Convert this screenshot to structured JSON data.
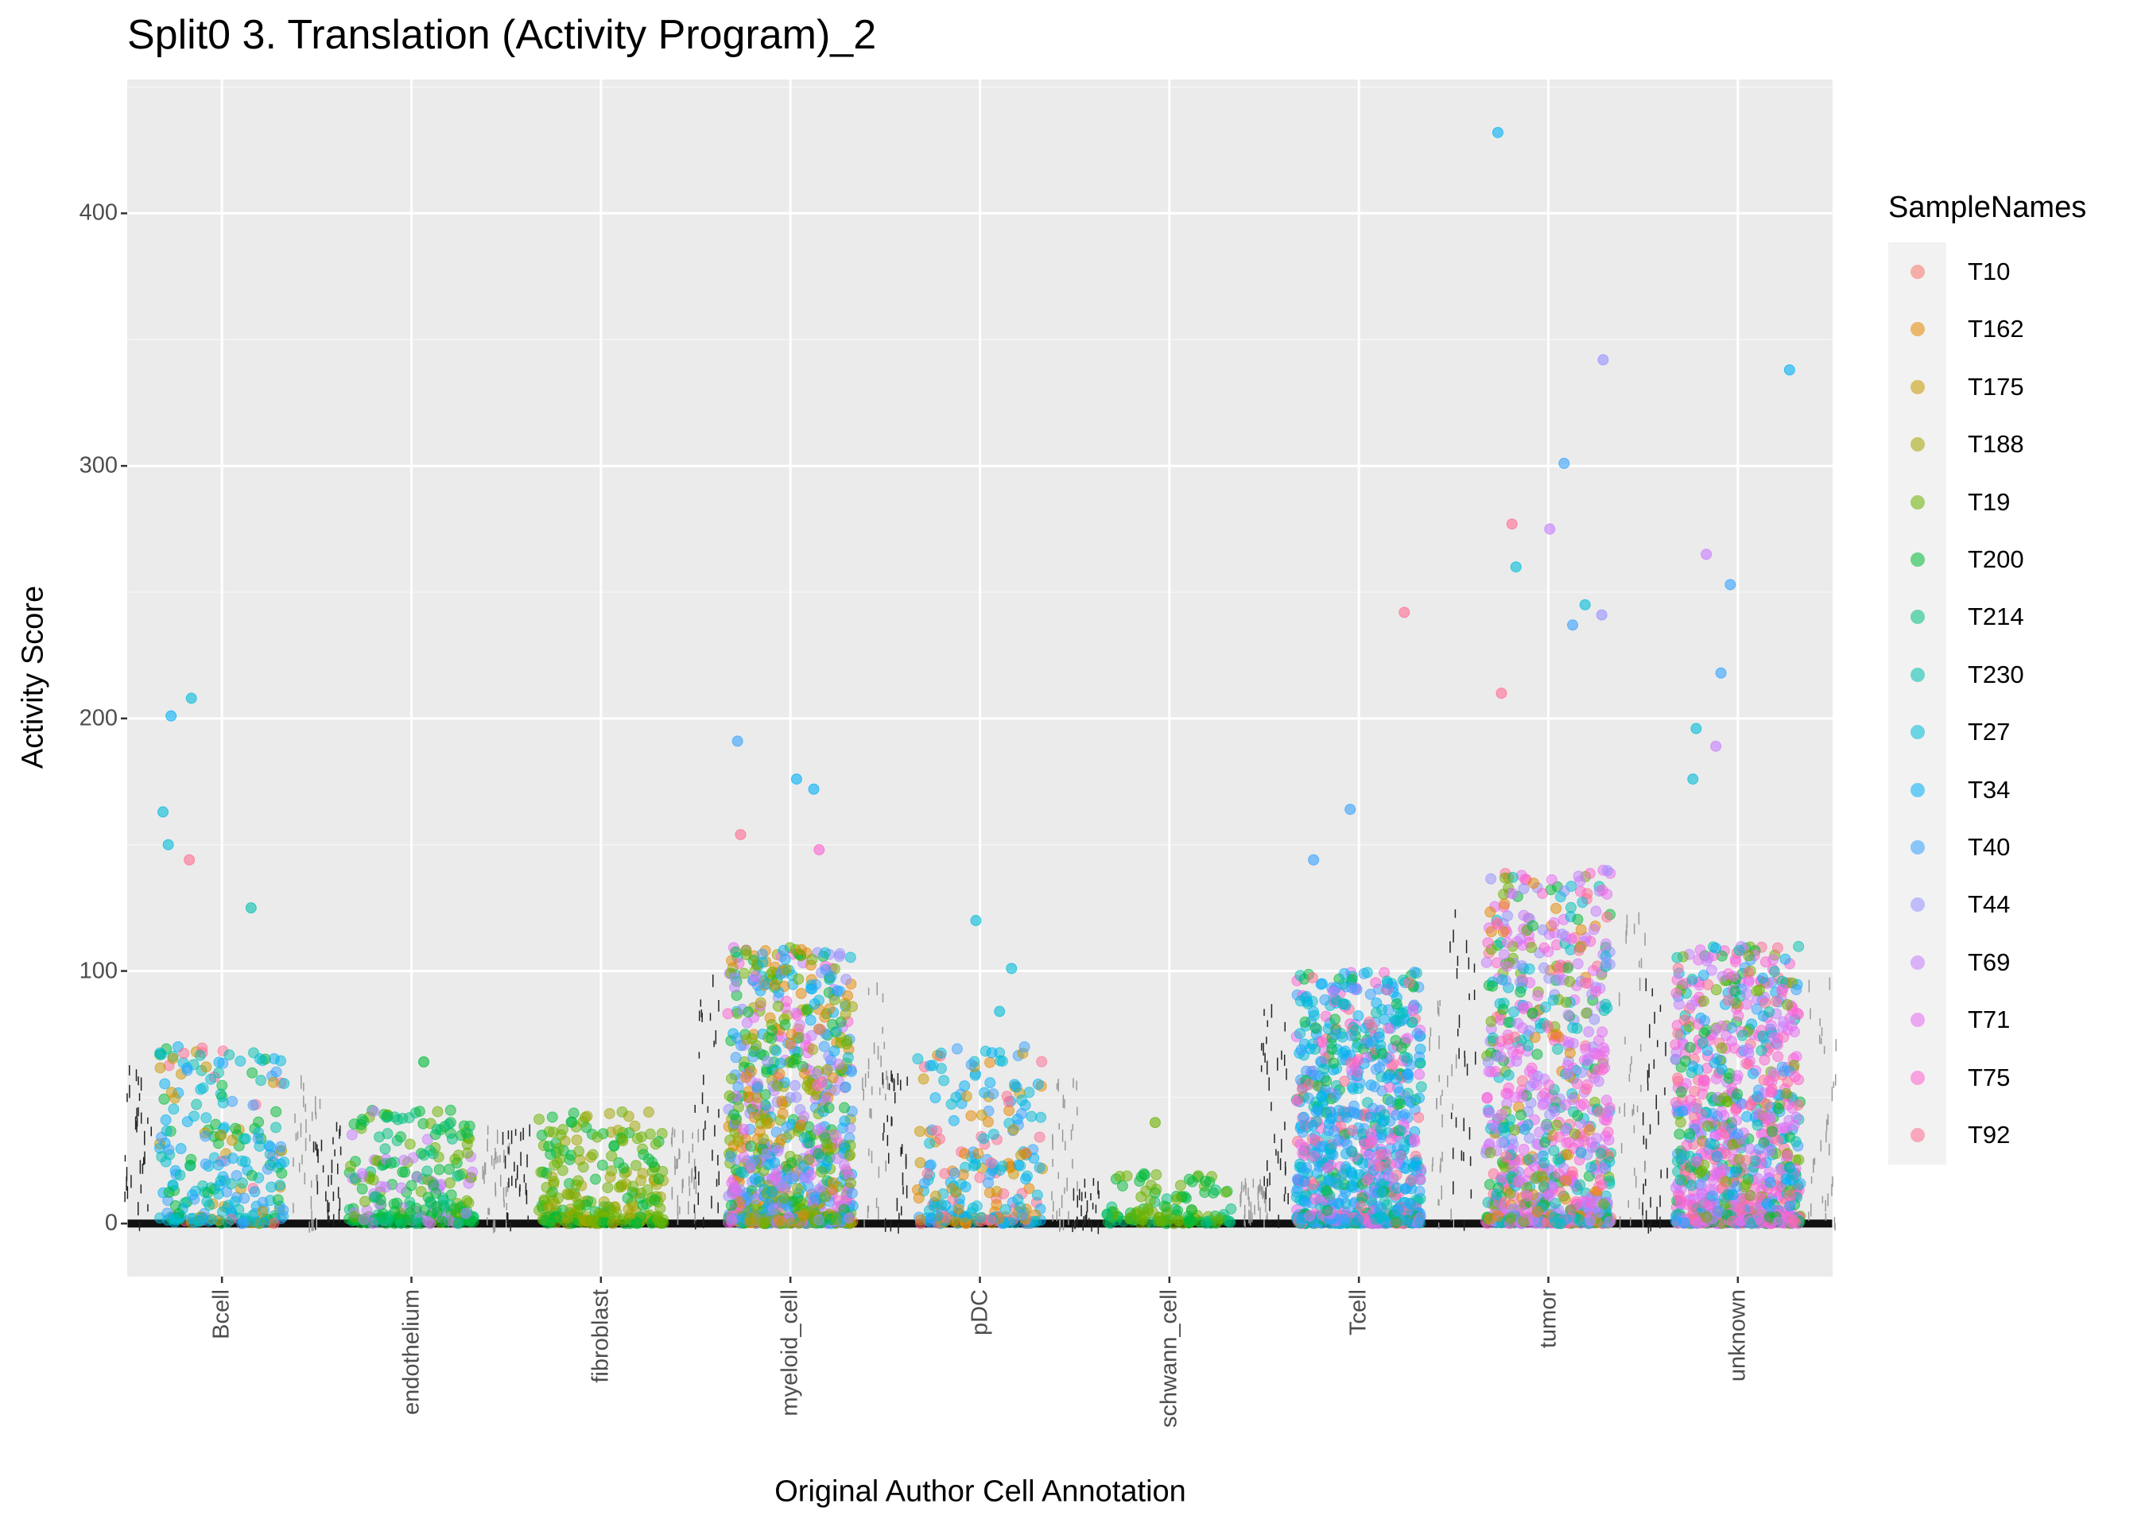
{
  "chart_data": {
    "type": "scatter",
    "title": "Split0 3. Translation (Activity Program)_2",
    "xlabel": "Original Author Cell Annotation",
    "ylabel": "Activity Score",
    "categories": [
      "Bcell",
      "endothelium",
      "fibroblast",
      "myeloid_cell",
      "pDC",
      "schwann_cell",
      "Tcell",
      "tumor",
      "unknown"
    ],
    "yticks": [
      0,
      100,
      200,
      300,
      400
    ],
    "ylim": [
      -21,
      453
    ],
    "grid": true,
    "legend": {
      "title": "SampleNames",
      "position": "right"
    },
    "series": [
      {
        "name": "T10",
        "color": "#F8766D"
      },
      {
        "name": "T162",
        "color": "#E58700"
      },
      {
        "name": "T175",
        "color": "#C99800"
      },
      {
        "name": "T188",
        "color": "#A3A500"
      },
      {
        "name": "T19",
        "color": "#6BB100"
      },
      {
        "name": "T200",
        "color": "#00BA38"
      },
      {
        "name": "T214",
        "color": "#00BF7D"
      },
      {
        "name": "T230",
        "color": "#00C0AF"
      },
      {
        "name": "T27",
        "color": "#00BCD8"
      },
      {
        "name": "T34",
        "color": "#00B0F6"
      },
      {
        "name": "T40",
        "color": "#35A2FF"
      },
      {
        "name": "T44",
        "color": "#9590FF"
      },
      {
        "name": "T69",
        "color": "#C77CFF"
      },
      {
        "name": "T71",
        "color": "#E76BF3"
      },
      {
        "name": "T75",
        "color": "#FD61D1"
      },
      {
        "name": "T92",
        "color": "#FF6C91"
      }
    ],
    "bulk": [
      {
        "category": "Bcell",
        "range": [
          0,
          70
        ],
        "samples": [
          "T27",
          "T34",
          "T40",
          "T230",
          "T92",
          "T200",
          "T175"
        ]
      },
      {
        "category": "endothelium",
        "range": [
          0,
          45
        ],
        "samples": [
          "T200",
          "T19",
          "T214",
          "T69"
        ]
      },
      {
        "category": "fibroblast",
        "range": [
          0,
          45
        ],
        "samples": [
          "T19",
          "T188",
          "T200"
        ]
      },
      {
        "category": "myeloid_cell",
        "range": [
          0,
          110
        ],
        "samples": [
          "T19",
          "T200",
          "T162",
          "T188",
          "T34",
          "T40",
          "T69",
          "T75",
          "T71",
          "T44",
          "T27"
        ]
      },
      {
        "category": "pDC",
        "range": [
          0,
          70
        ],
        "samples": [
          "T27",
          "T34",
          "T40",
          "T92",
          "T175",
          "T162"
        ]
      },
      {
        "category": "schwann_cell",
        "range": [
          0,
          20
        ],
        "samples": [
          "T19",
          "T200",
          "T214"
        ]
      },
      {
        "category": "Tcell",
        "range": [
          0,
          100
        ],
        "samples": [
          "T40",
          "T34",
          "T27",
          "T230",
          "T75",
          "T92",
          "T200",
          "T71"
        ]
      },
      {
        "category": "tumor",
        "range": [
          0,
          140
        ],
        "samples": [
          "T71",
          "T69",
          "T75",
          "T44",
          "T27",
          "T230",
          "T92",
          "T19",
          "T200",
          "T162"
        ]
      },
      {
        "category": "unknown",
        "range": [
          0,
          110
        ],
        "samples": [
          "T75",
          "T71",
          "T69",
          "T92",
          "T34",
          "T40",
          "T230",
          "T200",
          "T19"
        ]
      }
    ],
    "points": [
      {
        "category": "Bcell",
        "sample": "T34",
        "y": 201
      },
      {
        "category": "Bcell",
        "sample": "T27",
        "y": 208
      },
      {
        "category": "Bcell",
        "sample": "T27",
        "y": 163
      },
      {
        "category": "Bcell",
        "sample": "T27",
        "y": 150
      },
      {
        "category": "Bcell",
        "sample": "T92",
        "y": 144
      },
      {
        "category": "Bcell",
        "sample": "T230",
        "y": 125
      },
      {
        "category": "endothelium",
        "sample": "T200",
        "y": 64
      },
      {
        "category": "myeloid_cell",
        "sample": "T34",
        "y": 176
      },
      {
        "category": "myeloid_cell",
        "sample": "T40",
        "y": 191
      },
      {
        "category": "myeloid_cell",
        "sample": "T34",
        "y": 172
      },
      {
        "category": "myeloid_cell",
        "sample": "T92",
        "y": 154
      },
      {
        "category": "myeloid_cell",
        "sample": "T75",
        "y": 148
      },
      {
        "category": "pDC",
        "sample": "T27",
        "y": 120
      },
      {
        "category": "pDC",
        "sample": "T27",
        "y": 101
      },
      {
        "category": "pDC",
        "sample": "T27",
        "y": 84
      },
      {
        "category": "schwann_cell",
        "sample": "T19",
        "y": 40
      },
      {
        "category": "Tcell",
        "sample": "T92",
        "y": 242
      },
      {
        "category": "Tcell",
        "sample": "T40",
        "y": 164
      },
      {
        "category": "Tcell",
        "sample": "T40",
        "y": 144
      },
      {
        "category": "tumor",
        "sample": "T34",
        "y": 432
      },
      {
        "category": "tumor",
        "sample": "T44",
        "y": 342
      },
      {
        "category": "tumor",
        "sample": "T40",
        "y": 301
      },
      {
        "category": "tumor",
        "sample": "T92",
        "y": 277
      },
      {
        "category": "tumor",
        "sample": "T69",
        "y": 275
      },
      {
        "category": "tumor",
        "sample": "T27",
        "y": 260
      },
      {
        "category": "tumor",
        "sample": "T27",
        "y": 245
      },
      {
        "category": "tumor",
        "sample": "T40",
        "y": 237
      },
      {
        "category": "tumor",
        "sample": "T44",
        "y": 241
      },
      {
        "category": "tumor",
        "sample": "T92",
        "y": 210
      },
      {
        "category": "unknown",
        "sample": "T34",
        "y": 338
      },
      {
        "category": "unknown",
        "sample": "T69",
        "y": 265
      },
      {
        "category": "unknown",
        "sample": "T40",
        "y": 253
      },
      {
        "category": "unknown",
        "sample": "T40",
        "y": 218
      },
      {
        "category": "unknown",
        "sample": "T27",
        "y": 196
      },
      {
        "category": "unknown",
        "sample": "T69",
        "y": 189
      },
      {
        "category": "unknown",
        "sample": "T27",
        "y": 176
      }
    ]
  }
}
